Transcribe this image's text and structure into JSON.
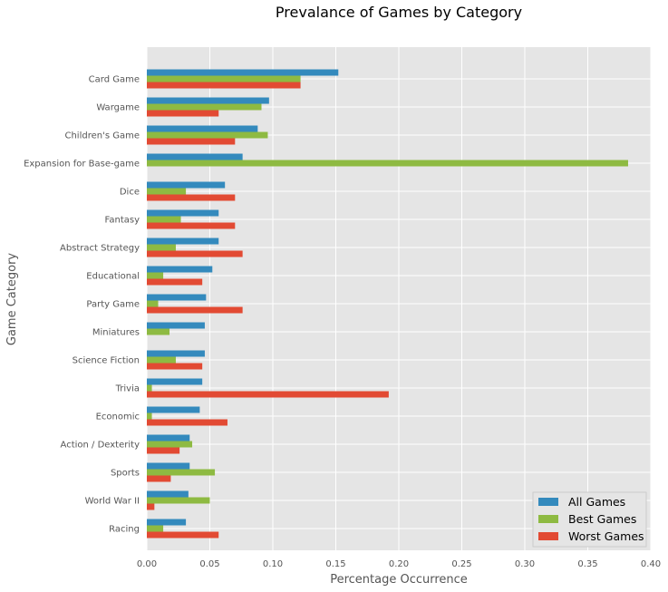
{
  "chart_data": {
    "type": "bar",
    "orientation": "horizontal",
    "title": "Prevalance of Games by Category",
    "xlabel": "Percentage Occurrence",
    "ylabel": "Game Category",
    "xlim": [
      0,
      0.4
    ],
    "x_ticks": [
      "0.00",
      "0.05",
      "0.10",
      "0.15",
      "0.20",
      "0.25",
      "0.30",
      "0.35",
      "0.40"
    ],
    "grid": true,
    "legend_position": "bottom-right",
    "categories": [
      "Card Game",
      "Wargame",
      "Children's Game",
      "Expansion for Base-game",
      "Dice",
      "Fantasy",
      "Abstract Strategy",
      "Educational",
      "Party Game",
      "Miniatures",
      "Science Fiction",
      "Trivia",
      "Economic",
      "Action / Dexterity",
      "Sports",
      "World War II",
      "Racing"
    ],
    "series": [
      {
        "name": "All Games",
        "color": "#348ABD",
        "values": [
          0.152,
          0.097,
          0.088,
          0.076,
          0.062,
          0.057,
          0.057,
          0.052,
          0.047,
          0.046,
          0.046,
          0.044,
          0.042,
          0.034,
          0.034,
          0.033,
          0.031
        ]
      },
      {
        "name": "Best Games",
        "color": "#8EBA42",
        "values": [
          0.122,
          0.091,
          0.096,
          0.382,
          0.031,
          0.027,
          0.023,
          0.013,
          0.009,
          0.018,
          0.023,
          0.004,
          0.004,
          0.036,
          0.054,
          0.05,
          0.013
        ]
      },
      {
        "name": "Worst Games",
        "color": "#E24A33",
        "values": [
          0.122,
          0.057,
          0.07,
          0.0,
          0.07,
          0.07,
          0.076,
          0.044,
          0.076,
          0.0,
          0.044,
          0.192,
          0.064,
          0.026,
          0.019,
          0.006,
          0.057
        ]
      }
    ]
  }
}
